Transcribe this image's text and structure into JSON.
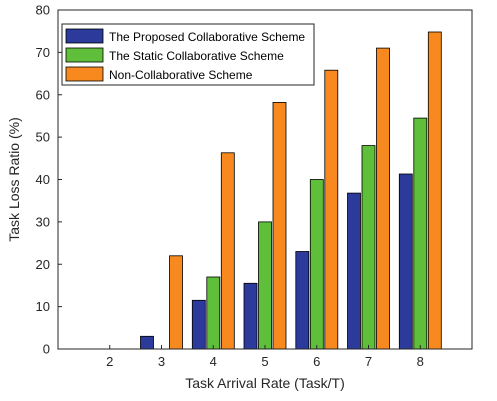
{
  "chart_data": {
    "type": "bar",
    "xlabel": "Task Arrival Rate (Task/T)",
    "ylabel": "Task Loss Ratio (%)",
    "categories": [
      "2",
      "3",
      "4",
      "5",
      "6",
      "7",
      "8"
    ],
    "ylim": [
      0,
      80
    ],
    "yticks": [
      "0",
      "10",
      "20",
      "30",
      "40",
      "50",
      "60",
      "70",
      "80"
    ],
    "grid": false,
    "legend_position": "top-left",
    "series": [
      {
        "name": "The Proposed Collaborative Scheme",
        "color": "#2b3a9b",
        "values": [
          0,
          3,
          11.5,
          15.5,
          23,
          36.8,
          41.3
        ]
      },
      {
        "name": "The Static Collaborative Scheme",
        "color": "#5fbf3a",
        "values": [
          0,
          0,
          17,
          30,
          40,
          48,
          54.5
        ]
      },
      {
        "name": "Non-Collaborative Scheme",
        "color": "#f7891e",
        "values": [
          0,
          22,
          46.3,
          58.2,
          65.8,
          71,
          74.8
        ]
      }
    ]
  }
}
